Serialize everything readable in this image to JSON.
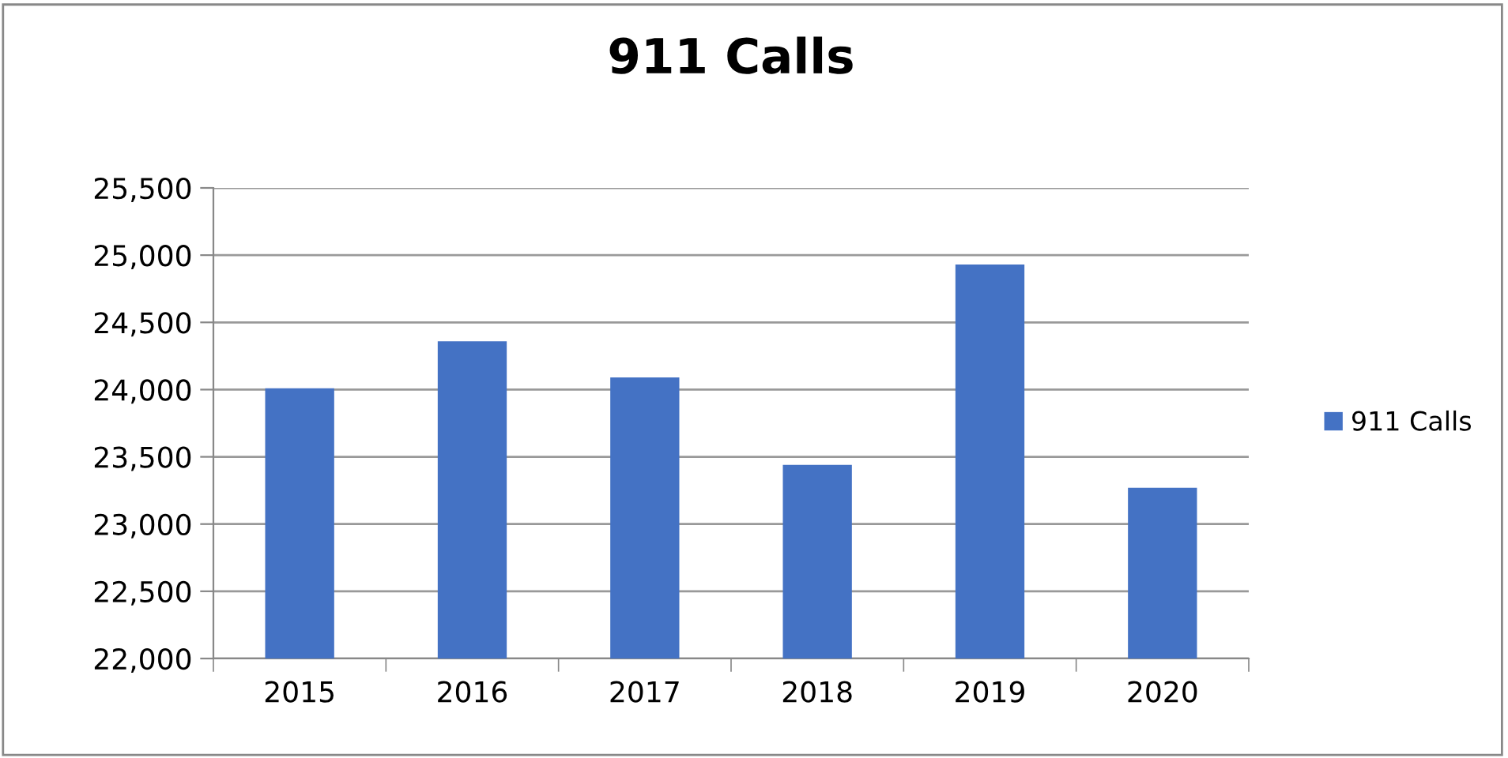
{
  "chart_data": {
    "type": "bar",
    "title": "911 Calls",
    "categories": [
      "2015",
      "2016",
      "2017",
      "2018",
      "2019",
      "2020"
    ],
    "series": [
      {
        "name": "911 Calls",
        "color": "#4472c4",
        "values": [
          24010,
          24360,
          24090,
          23440,
          24930,
          23270
        ]
      }
    ],
    "ylim": [
      22000,
      25500
    ],
    "yticks": [
      {
        "value": 22000,
        "label": "22,000"
      },
      {
        "value": 22500,
        "label": "22,500"
      },
      {
        "value": 23000,
        "label": "23,000"
      },
      {
        "value": 23500,
        "label": "23,500"
      },
      {
        "value": 24000,
        "label": "24,000"
      },
      {
        "value": 24500,
        "label": "24,500"
      },
      {
        "value": 25000,
        "label": "25,000"
      },
      {
        "value": 25500,
        "label": "25,500"
      }
    ],
    "grid": "y",
    "legend": "right"
  }
}
